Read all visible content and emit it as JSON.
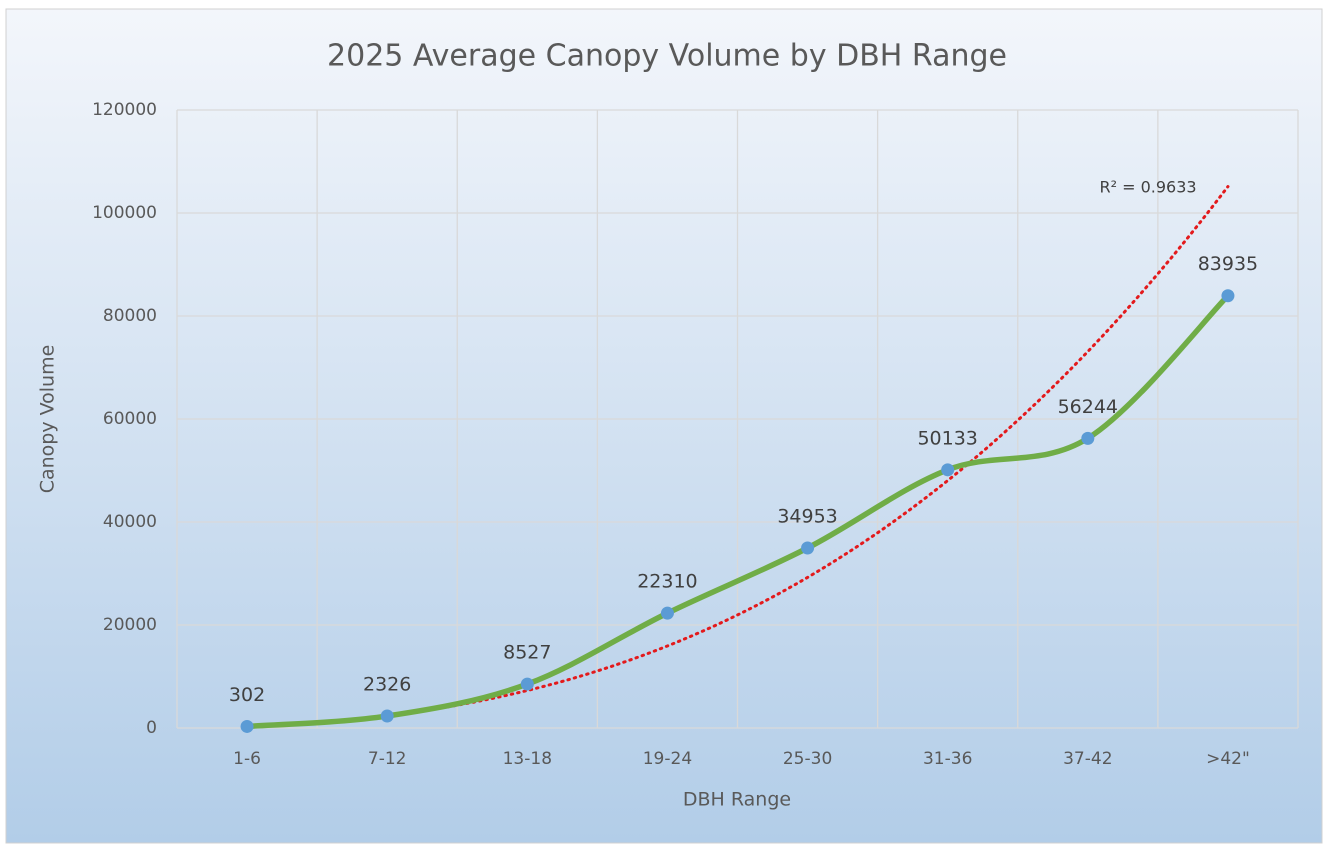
{
  "chart_data": {
    "type": "line",
    "title": "2025 Average Canopy Volume by DBH Range",
    "x_label": "DBH Range",
    "y_label": "Canopy Volume",
    "categories": [
      "1-6",
      "7-12",
      "13-18",
      "19-24",
      "25-30",
      "31-36",
      "37-42",
      ">42\""
    ],
    "series": [
      {
        "name": "Canopy Volume",
        "color": "#70ad47",
        "marker_color": "#5b9bd5",
        "values": [
          302,
          2326,
          8527,
          22310,
          34953,
          50133,
          56244,
          83935
        ]
      }
    ],
    "trendline": {
      "type": "power",
      "color": "#e31a1c",
      "label": "R² = 0.9633"
    },
    "ylim": [
      0,
      120000
    ],
    "yticks": [
      0,
      20000,
      40000,
      60000,
      80000,
      100000,
      120000
    ],
    "grid": true,
    "smooth": true,
    "data_labels": true
  }
}
